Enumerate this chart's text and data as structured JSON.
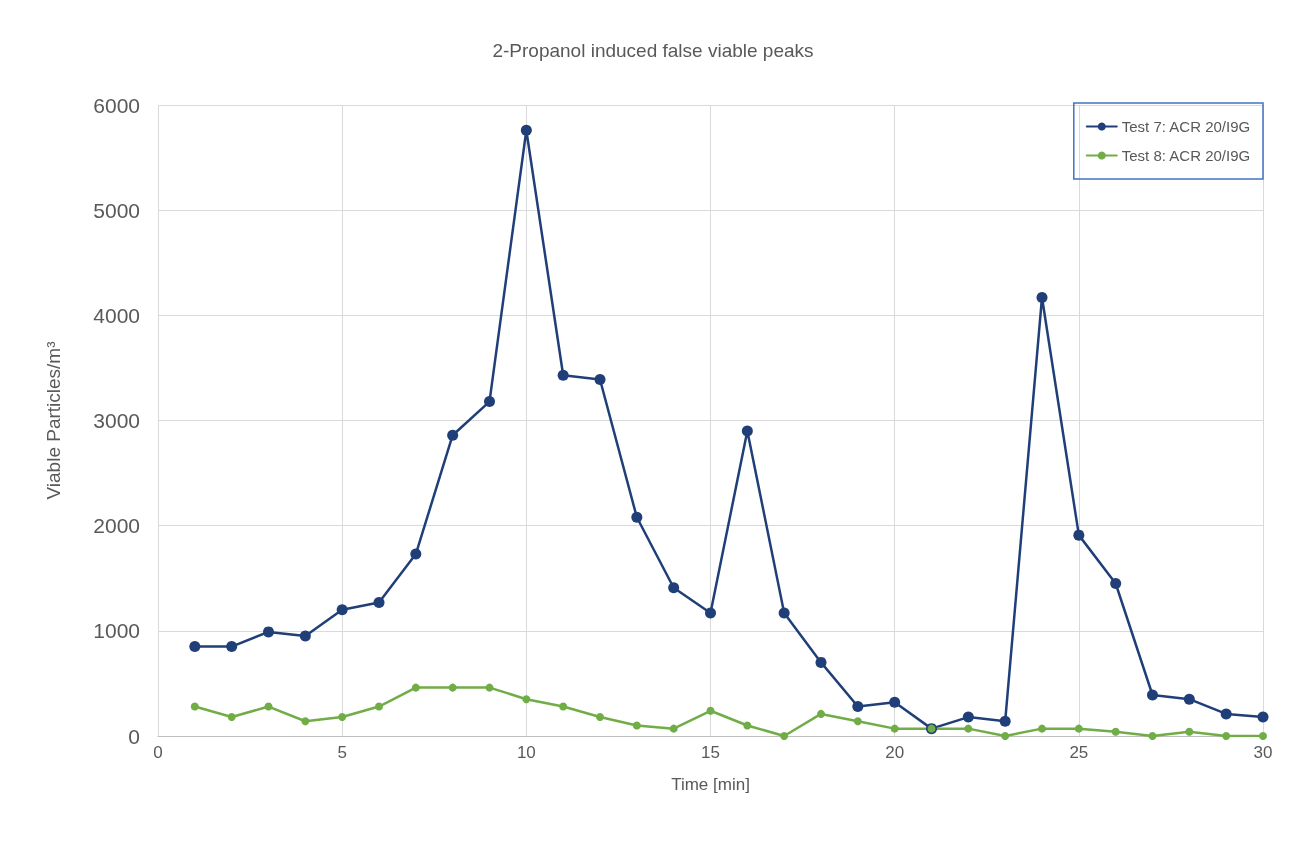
{
  "chart_data": {
    "type": "line",
    "title": "2-Propanol induced false viable peaks",
    "xlabel": "Time [min]",
    "ylabel": "Viable Particles/m³",
    "x": [
      1,
      2,
      3,
      4,
      5,
      6,
      7,
      8,
      9,
      10,
      11,
      12,
      13,
      14,
      15,
      16,
      17,
      18,
      19,
      20,
      21,
      22,
      23,
      24,
      25,
      26,
      27,
      28,
      29,
      30
    ],
    "series": [
      {
        "name": "Test 7: ACR 20/I9G",
        "color": "#203f78",
        "values": [
          850,
          850,
          990,
          950,
          1200,
          1270,
          1730,
          2860,
          3180,
          5760,
          3430,
          3390,
          2080,
          1410,
          1170,
          2900,
          1170,
          700,
          280,
          320,
          70,
          180,
          140,
          4170,
          1910,
          1450,
          390,
          350,
          210,
          180
        ]
      },
      {
        "name": "Test 8: ACR 20/I9G",
        "color": "#70ad47",
        "values": [
          280,
          180,
          280,
          140,
          180,
          280,
          460,
          460,
          460,
          350,
          280,
          180,
          100,
          70,
          240,
          100,
          0,
          210,
          140,
          70,
          70,
          70,
          0,
          70,
          70,
          40,
          0,
          40,
          0,
          0
        ]
      }
    ],
    "xlim": [
      0,
      30
    ],
    "xticks": [
      0,
      5,
      10,
      15,
      20,
      25,
      30
    ],
    "ylim": [
      0,
      6000
    ],
    "yticks": [
      0,
      1000,
      2000,
      3000,
      4000,
      5000,
      6000
    ],
    "grid": true,
    "legend": "top right",
    "marker": "circle",
    "line_style": "solid"
  }
}
